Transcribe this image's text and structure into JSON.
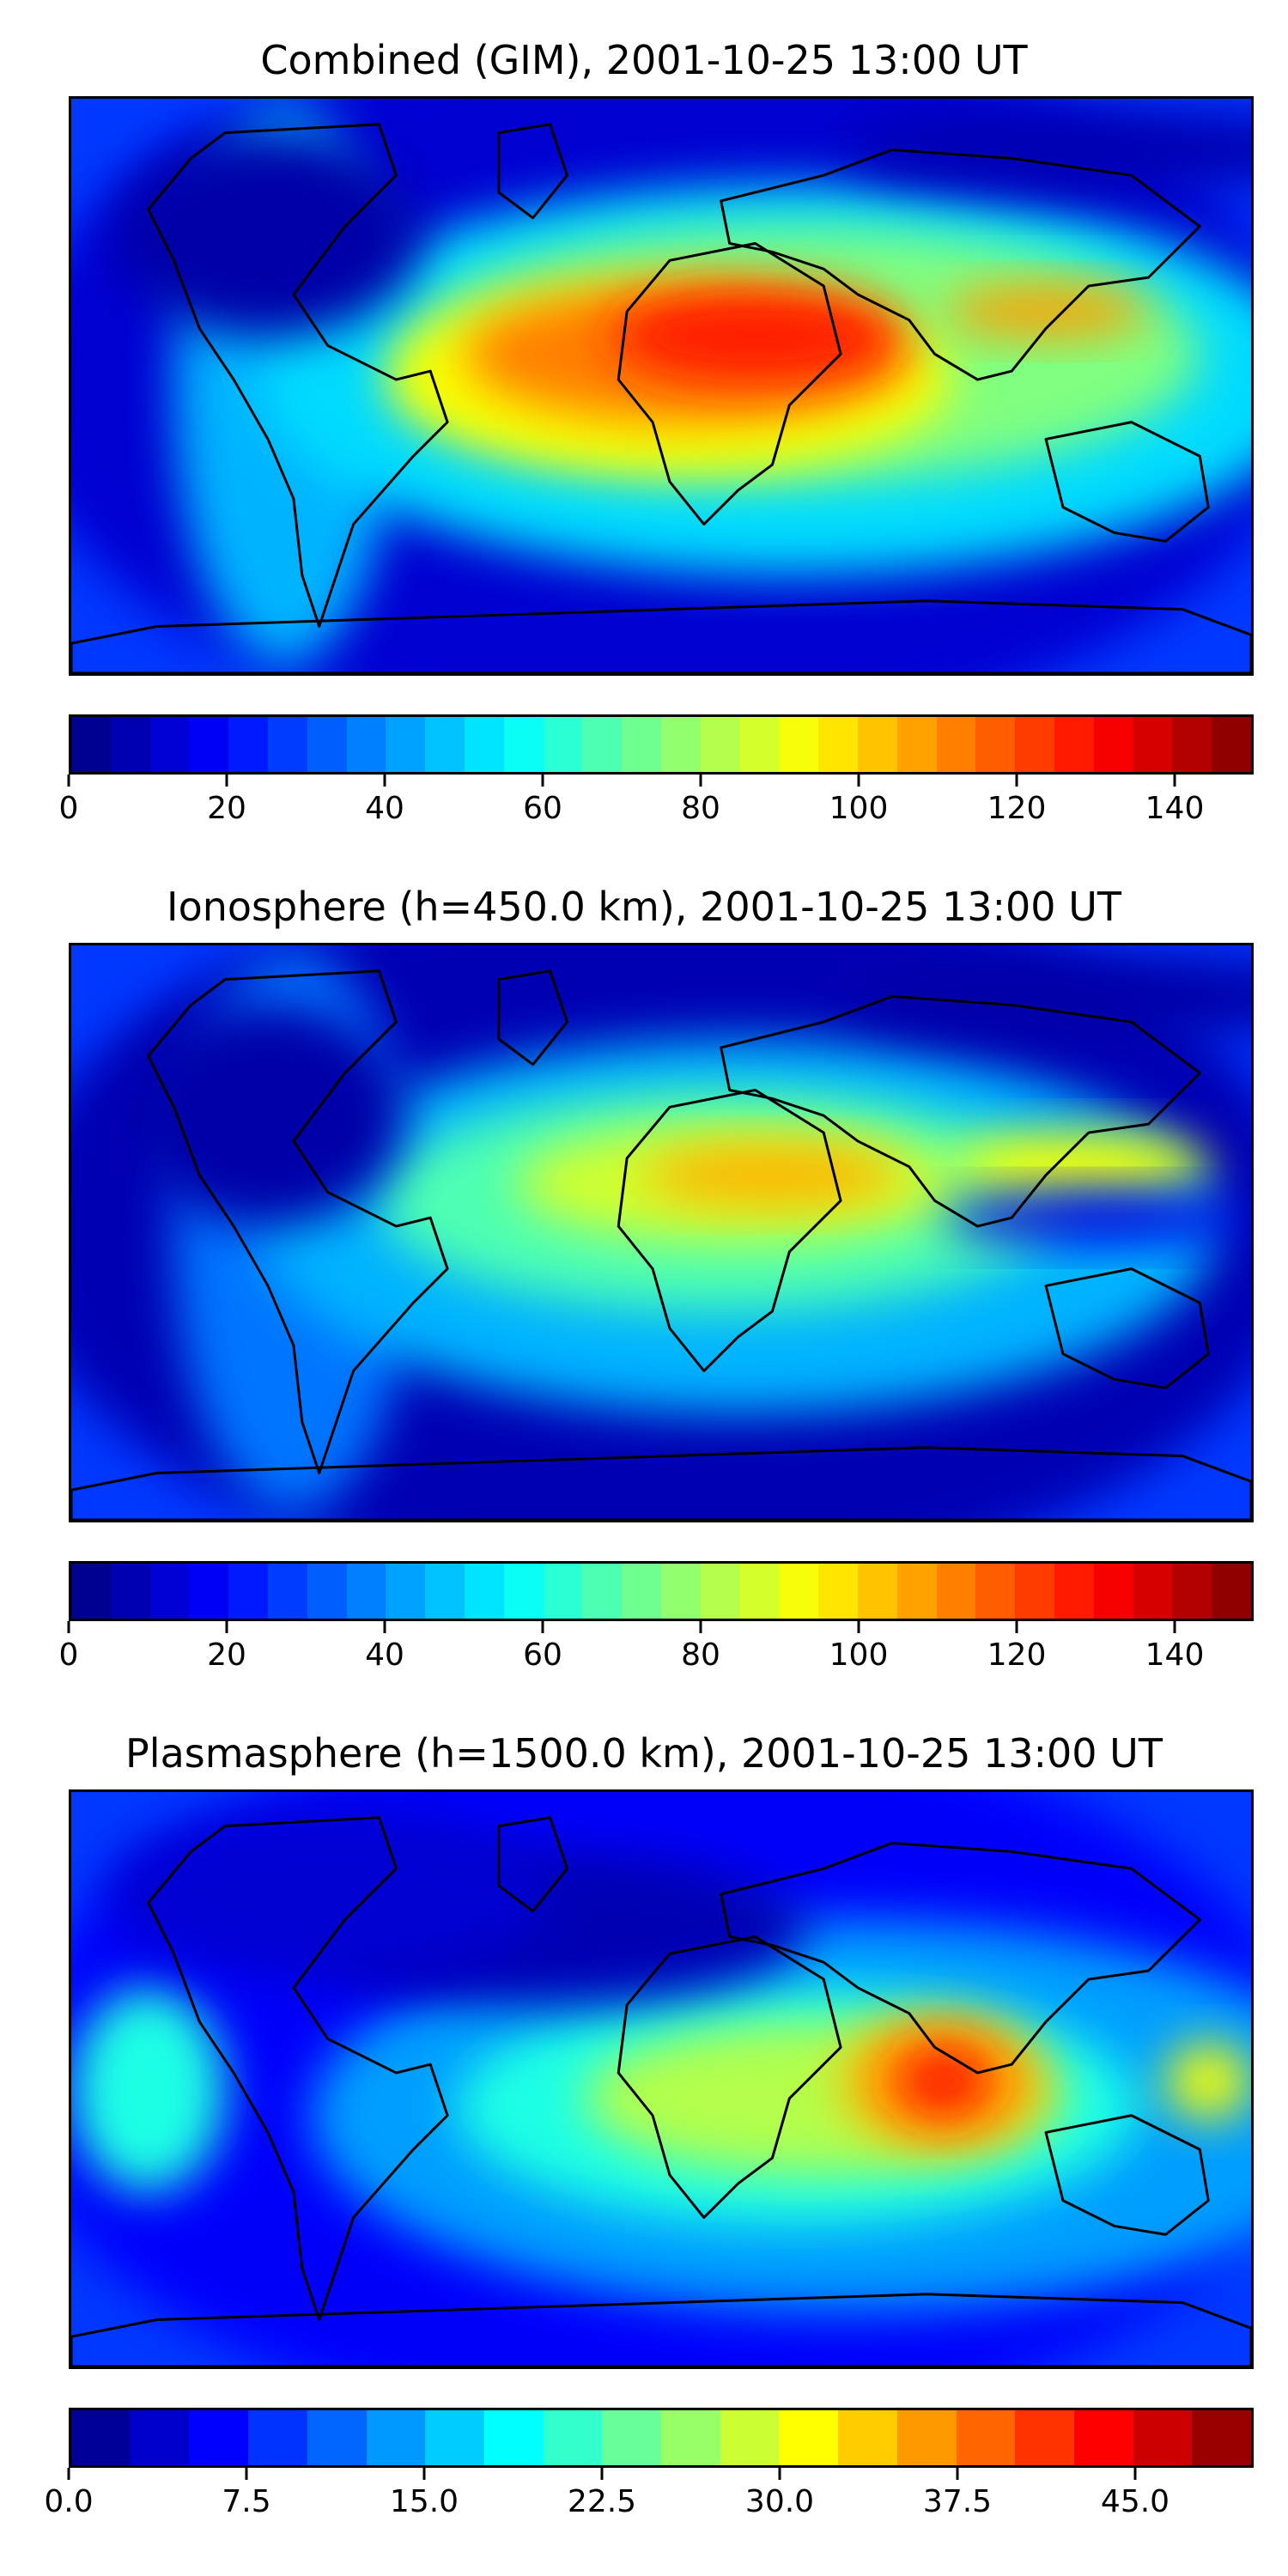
{
  "figure": {
    "panels": [
      {
        "id": "combined",
        "title": "Combined (GIM), 2001-10-25 13:00 UT",
        "colorbar": {
          "min": 0,
          "max": 150,
          "levels": 30,
          "ticks": [
            "0",
            "20",
            "40",
            "60",
            "80",
            "100",
            "120",
            "140"
          ],
          "tick_values": [
            0,
            20,
            40,
            60,
            80,
            100,
            120,
            140
          ]
        }
      },
      {
        "id": "ionosphere",
        "title": "Ionosphere  (h=450.0 km), 2001-10-25 13:00 UT",
        "colorbar": {
          "min": 0,
          "max": 150,
          "levels": 30,
          "ticks": [
            "0",
            "20",
            "40",
            "60",
            "80",
            "100",
            "120",
            "140"
          ],
          "tick_values": [
            0,
            20,
            40,
            60,
            80,
            100,
            120,
            140
          ]
        }
      },
      {
        "id": "plasmasphere",
        "title": "Plasmasphere (h=1500.0 km), 2001-10-25 13:00 UT",
        "colorbar": {
          "min": 0,
          "max": 50,
          "levels": 20,
          "ticks": [
            "0.0",
            "7.5",
            "15.0",
            "22.5",
            "30.0",
            "37.5",
            "45.0"
          ],
          "tick_values": [
            0,
            7.5,
            15,
            22.5,
            30,
            37.5,
            45
          ]
        }
      }
    ],
    "colormap": "jet",
    "map_projection": "PlateCarree, global, with coastlines"
  }
}
